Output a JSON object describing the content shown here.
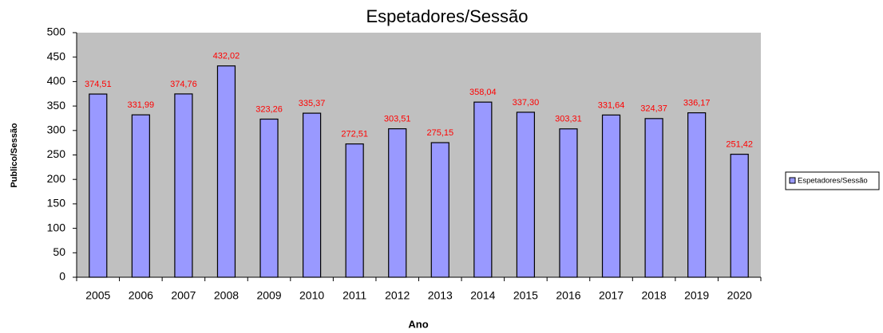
{
  "chart_data": {
    "type": "bar",
    "title": "Espetadores/Sessão",
    "x_label": "Ano",
    "y_label": "Publico/Sessão",
    "categories": [
      "2005",
      "2006",
      "2007",
      "2008",
      "2009",
      "2010",
      "2011",
      "2012",
      "2013",
      "2014",
      "2015",
      "2016",
      "2017",
      "2018",
      "2019",
      "2020"
    ],
    "series": [
      {
        "name": "Espetadores/Sessão",
        "color": "#9999ff",
        "values": [
          374.51,
          331.99,
          374.76,
          432.02,
          323.26,
          335.37,
          272.51,
          303.51,
          275.15,
          358.04,
          337.3,
          303.31,
          331.64,
          324.37,
          336.17,
          251.42
        ],
        "value_labels": [
          "374,51",
          "331,99",
          "374,76",
          "432,02",
          "323,26",
          "335,37",
          "272,51",
          "303,51",
          "275,15",
          "358,04",
          "337,30",
          "303,31",
          "331,64",
          "324,37",
          "336,17",
          "251,42"
        ],
        "label_color": "#ff0000"
      }
    ],
    "ylim": [
      0,
      500
    ],
    "yticks": [
      0,
      50,
      100,
      150,
      200,
      250,
      300,
      350,
      400,
      450,
      500
    ],
    "grid": false,
    "plot_background": "#c0c0c0",
    "legend": "right"
  }
}
